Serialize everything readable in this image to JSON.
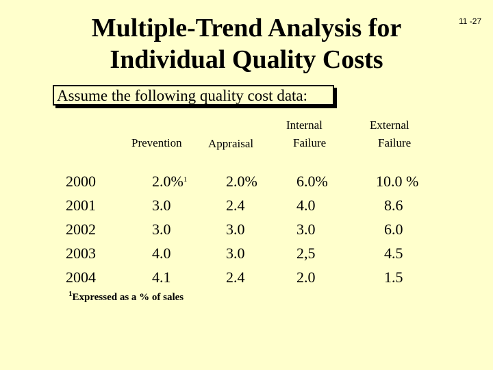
{
  "slide": {
    "title_line1": "Multiple-Trend Analysis for",
    "title_line2": "Individual Quality Costs",
    "page_number": "11 -27",
    "subtitle": "Assume the following quality cost data:"
  },
  "table": {
    "headers": {
      "prevention": "Prevention",
      "appraisal": "Appraisal",
      "internal_line1": "Internal",
      "internal_line2": "Failure",
      "external_line1": "External",
      "external_line2": "Failure"
    },
    "rows": [
      {
        "year": "2000",
        "prevention": "2.0%",
        "prevention_sup": "1",
        "appraisal": "2.0%",
        "internal": "6.0%",
        "external": "10.0 %"
      },
      {
        "year": "2001",
        "prevention": "3.0",
        "prevention_sup": "",
        "appraisal": "2.4",
        "internal": "4.0",
        "external": "8.6"
      },
      {
        "year": "2002",
        "prevention": "3.0",
        "prevention_sup": "",
        "appraisal": "3.0",
        "internal": "3.0",
        "external": "6.0"
      },
      {
        "year": "2003",
        "prevention": "4.0",
        "prevention_sup": "",
        "appraisal": "3.0",
        "internal": "2,5",
        "external": "4.5"
      },
      {
        "year": "2004",
        "prevention": "4.1",
        "prevention_sup": "",
        "appraisal": "2.4",
        "internal": "2.0",
        "external": "1.5"
      }
    ],
    "footnote_marker": "1",
    "footnote_text": "Expressed as a % of sales"
  }
}
